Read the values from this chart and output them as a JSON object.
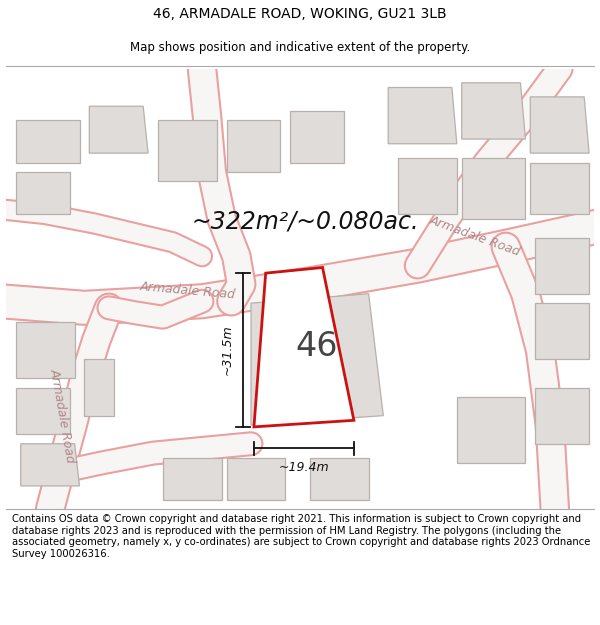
{
  "title_line1": "46, ARMADALE ROAD, WOKING, GU21 3LB",
  "title_line2": "Map shows position and indicative extent of the property.",
  "area_text": "~322m²/~0.080ac.",
  "number_label": "46",
  "dim_width": "~19.4m",
  "dim_height": "~31.5m",
  "footer_text": "Contains OS data © Crown copyright and database right 2021. This information is subject to Crown copyright and database rights 2023 and is reproduced with the permission of HM Land Registry. The polygons (including the associated geometry, namely x, y co-ordinates) are subject to Crown copyright and database rights 2023 Ordnance Survey 100026316.",
  "bg_color": "#ffffff",
  "map_bg_color": "#f8f6f4",
  "road_color": "#e8a0a0",
  "building_fill": "#e0dcda",
  "building_edge": "#b8b0ac",
  "highlight_color": "#cc1111",
  "highlight_fill": "#ffffff",
  "dim_line_color": "#111111",
  "title_fontsize": 10,
  "subtitle_fontsize": 8.5,
  "area_fontsize": 17,
  "label_fontsize": 24,
  "road_label_fontsize": 9,
  "footer_fontsize": 7.2
}
